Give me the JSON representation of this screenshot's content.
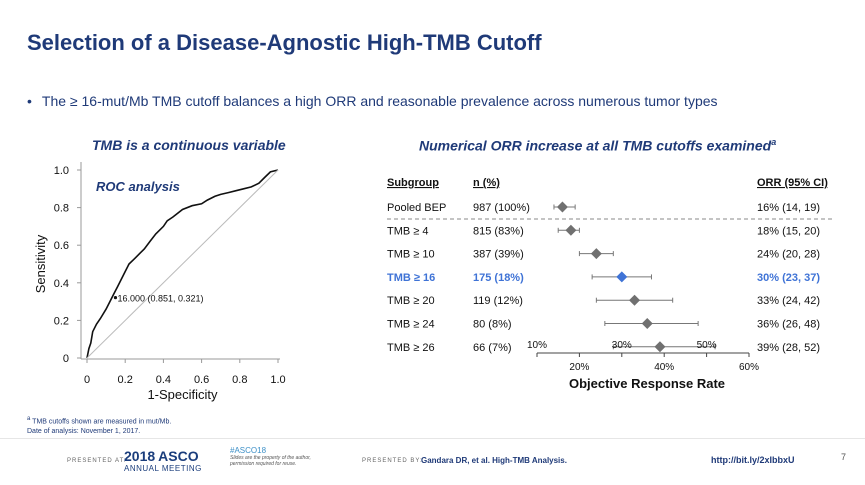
{
  "header": {
    "title": "Selection of a Disease-Agnostic High-TMB Cutoff",
    "bullet": "The ≥ 16-mut/Mb TMB cutoff balances a high ORR and reasonable prevalence across numerous tumor types"
  },
  "left_panel": {
    "subtitle": "TMB is a continuous variable"
  },
  "right_panel": {
    "subtitle": "Numerical ORR increase at all TMB cutoffs examined",
    "subtitle_sup": "a"
  },
  "chart_data": [
    {
      "type": "line",
      "title": "ROC analysis",
      "xlabel": "1-Specificity",
      "ylabel": "Sensitivity",
      "xlim": [
        0,
        1.0
      ],
      "ylim": [
        0,
        1.0
      ],
      "xticks": [
        "0",
        "0.2",
        "0.4",
        "0.6",
        "0.8",
        "1.0"
      ],
      "yticks": [
        "0",
        "0.2",
        "0.4",
        "0.6",
        "0.8",
        "1.0"
      ],
      "annotation": {
        "text": "16.000 (0.851, 0.321)",
        "x": 0.149,
        "y": 0.321
      },
      "series": [
        {
          "name": "ROC curve",
          "color": "#111111",
          "x": [
            0,
            0.01,
            0.02,
            0.03,
            0.05,
            0.07,
            0.1,
            0.12,
            0.14,
            0.16,
            0.2,
            0.22,
            0.25,
            0.28,
            0.3,
            0.33,
            0.36,
            0.4,
            0.42,
            0.45,
            0.5,
            0.55,
            0.6,
            0.63,
            0.67,
            0.7,
            0.74,
            0.78,
            0.82,
            0.86,
            0.9,
            0.93,
            0.96,
            1.0
          ],
          "y": [
            0,
            0.05,
            0.08,
            0.14,
            0.18,
            0.21,
            0.26,
            0.3,
            0.34,
            0.38,
            0.46,
            0.5,
            0.53,
            0.56,
            0.58,
            0.62,
            0.66,
            0.7,
            0.73,
            0.75,
            0.79,
            0.81,
            0.82,
            0.84,
            0.86,
            0.87,
            0.88,
            0.89,
            0.9,
            0.91,
            0.93,
            0.96,
            0.99,
            1.0
          ]
        },
        {
          "name": "Reference",
          "color": "#bbbbbb",
          "x": [
            0,
            1
          ],
          "y": [
            0,
            1
          ]
        }
      ]
    },
    {
      "type": "forest",
      "xlabel": "Objective Response Rate",
      "xlim": [
        10,
        60
      ],
      "xticks": [
        "10%",
        "20%",
        "30%",
        "40%",
        "50%",
        "60%"
      ],
      "headers": {
        "subgroup": "Subgroup",
        "n": "n (%)",
        "orr": "ORR (95% CI)"
      },
      "rows": [
        {
          "subgroup": "Pooled BEP",
          "n": "987 (100%)",
          "orr_text": "16% (14, 19)",
          "est": 16,
          "lo": 14,
          "hi": 19,
          "highlight": false
        },
        {
          "subgroup": "TMB ≥  4",
          "n": "815 (83%)",
          "orr_text": "18% (15, 20)",
          "est": 18,
          "lo": 15,
          "hi": 20,
          "highlight": false
        },
        {
          "subgroup": "TMB ≥ 10",
          "n": "387 (39%)",
          "orr_text": "24% (20, 28)",
          "est": 24,
          "lo": 20,
          "hi": 28,
          "highlight": false
        },
        {
          "subgroup": "TMB ≥ 16",
          "n": "175 (18%)",
          "orr_text": "30% (23, 37)",
          "est": 30,
          "lo": 23,
          "hi": 37,
          "highlight": true
        },
        {
          "subgroup": "TMB ≥ 20",
          "n": "119 (12%)",
          "orr_text": "33% (24, 42)",
          "est": 33,
          "lo": 24,
          "hi": 42,
          "highlight": false
        },
        {
          "subgroup": "TMB ≥ 24",
          "n": "80 (8%)",
          "orr_text": "36% (26, 48)",
          "est": 36,
          "lo": 26,
          "hi": 48,
          "highlight": false
        },
        {
          "subgroup": "TMB ≥ 26",
          "n": "66 (7%)",
          "orr_text": "39% (28, 52)",
          "est": 39,
          "lo": 28,
          "hi": 52,
          "highlight": false
        }
      ],
      "colors": {
        "marker": "#707070",
        "highlight": "#3f73d6",
        "text": "#111111"
      }
    }
  ],
  "footnotes": {
    "sup": "a",
    "note": " TMB cutoffs shown are measured in mut/Mb.",
    "date": "Date of analysis: November 1, 2017."
  },
  "footer": {
    "presented_at": "PRESENTED AT:",
    "asco_year": "2018",
    "asco_name": "ASCO",
    "asco_meeting": "ANNUAL MEETING",
    "asco_hashtag": "#ASCO18",
    "asco_disclaimer": "Slides are the property of the author, permission required for reuse.",
    "presented_by": "PRESENTED BY:",
    "citation": "Gandara DR, et al. High-TMB Analysis.",
    "link": "http://bit.ly/2xIbbxU",
    "page_number": "7"
  }
}
